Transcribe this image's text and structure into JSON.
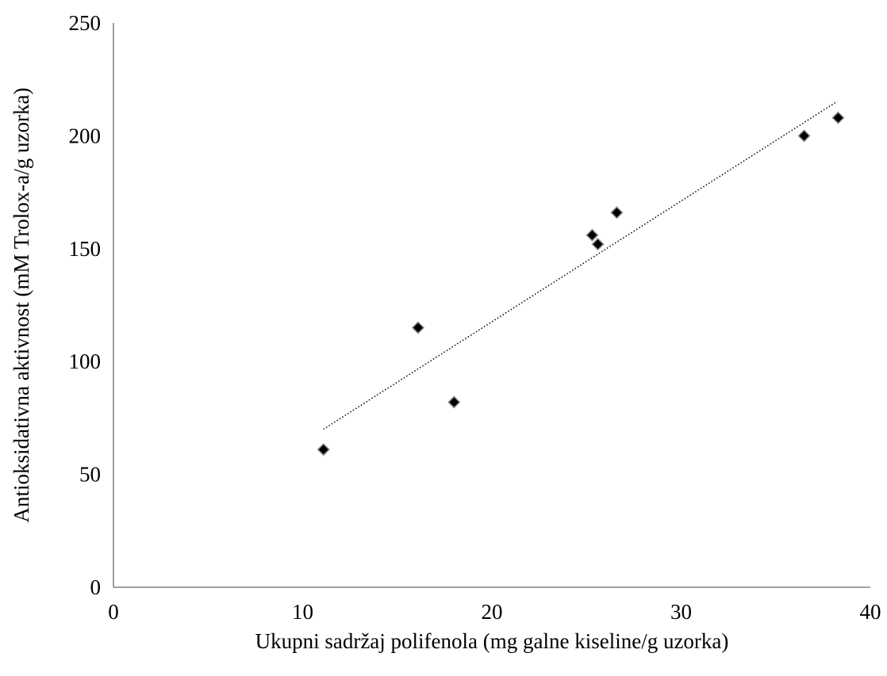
{
  "chart_data": {
    "type": "scatter",
    "title": "",
    "xlabel": "Ukupni sadržaj polifenola (mg galne kiseline/g uzorka)",
    "ylabel": "Antioksidativna aktivnost (mM Trolox-a/g uzorka)",
    "xlim": [
      0,
      40
    ],
    "ylim": [
      0,
      250
    ],
    "x_ticks": [
      0,
      10,
      20,
      30,
      40
    ],
    "y_ticks": [
      0,
      50,
      100,
      150,
      200,
      250
    ],
    "x_tick_labels": [
      "0",
      "10",
      "20",
      "30",
      "40"
    ],
    "y_tick_labels": [
      "0",
      "50",
      "100",
      "150",
      "200",
      "250"
    ],
    "grid": false,
    "legend": "none",
    "marker": "diamond",
    "marker_color": "#000000",
    "series": [
      {
        "points": [
          {
            "x": 11.1,
            "y": 61
          },
          {
            "x": 16.1,
            "y": 115
          },
          {
            "x": 18.0,
            "y": 82
          },
          {
            "x": 25.3,
            "y": 156
          },
          {
            "x": 25.6,
            "y": 152
          },
          {
            "x": 26.6,
            "y": 166
          },
          {
            "x": 36.5,
            "y": 200
          },
          {
            "x": 38.3,
            "y": 208
          }
        ]
      }
    ],
    "trendline": {
      "style": "dotted",
      "type": "linear",
      "from": {
        "x": 11.1,
        "y": 70
      },
      "to": {
        "x": 38.2,
        "y": 215
      }
    }
  }
}
